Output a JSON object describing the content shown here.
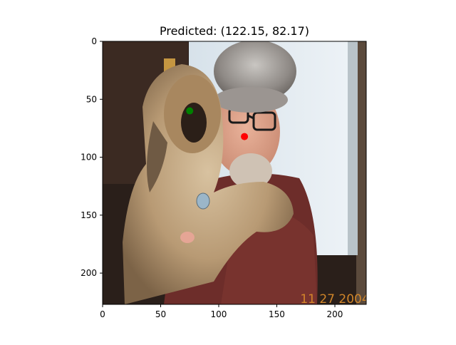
{
  "chart_data": {
    "type": "scatter",
    "title": "Predicted: (122.15, 82.17)",
    "xlabel": "",
    "ylabel": "",
    "xlim": [
      0,
      227
    ],
    "ylim": [
      227,
      0
    ],
    "x_ticks": [
      0,
      50,
      100,
      150,
      200
    ],
    "y_ticks": [
      0,
      50,
      100,
      150,
      200
    ],
    "grid": false,
    "background_image": "photo of a man in a grey fur hat and glasses holding a long-haired tan dog; orange date stamp in bottom-right corner",
    "image_date_stamp": "11 27 2004",
    "series": [
      {
        "color": "#ff0000",
        "points": [
          [
            122.15,
            82.17
          ]
        ]
      },
      {
        "color": "#008000",
        "points": [
          [
            75,
            60
          ]
        ]
      }
    ]
  }
}
